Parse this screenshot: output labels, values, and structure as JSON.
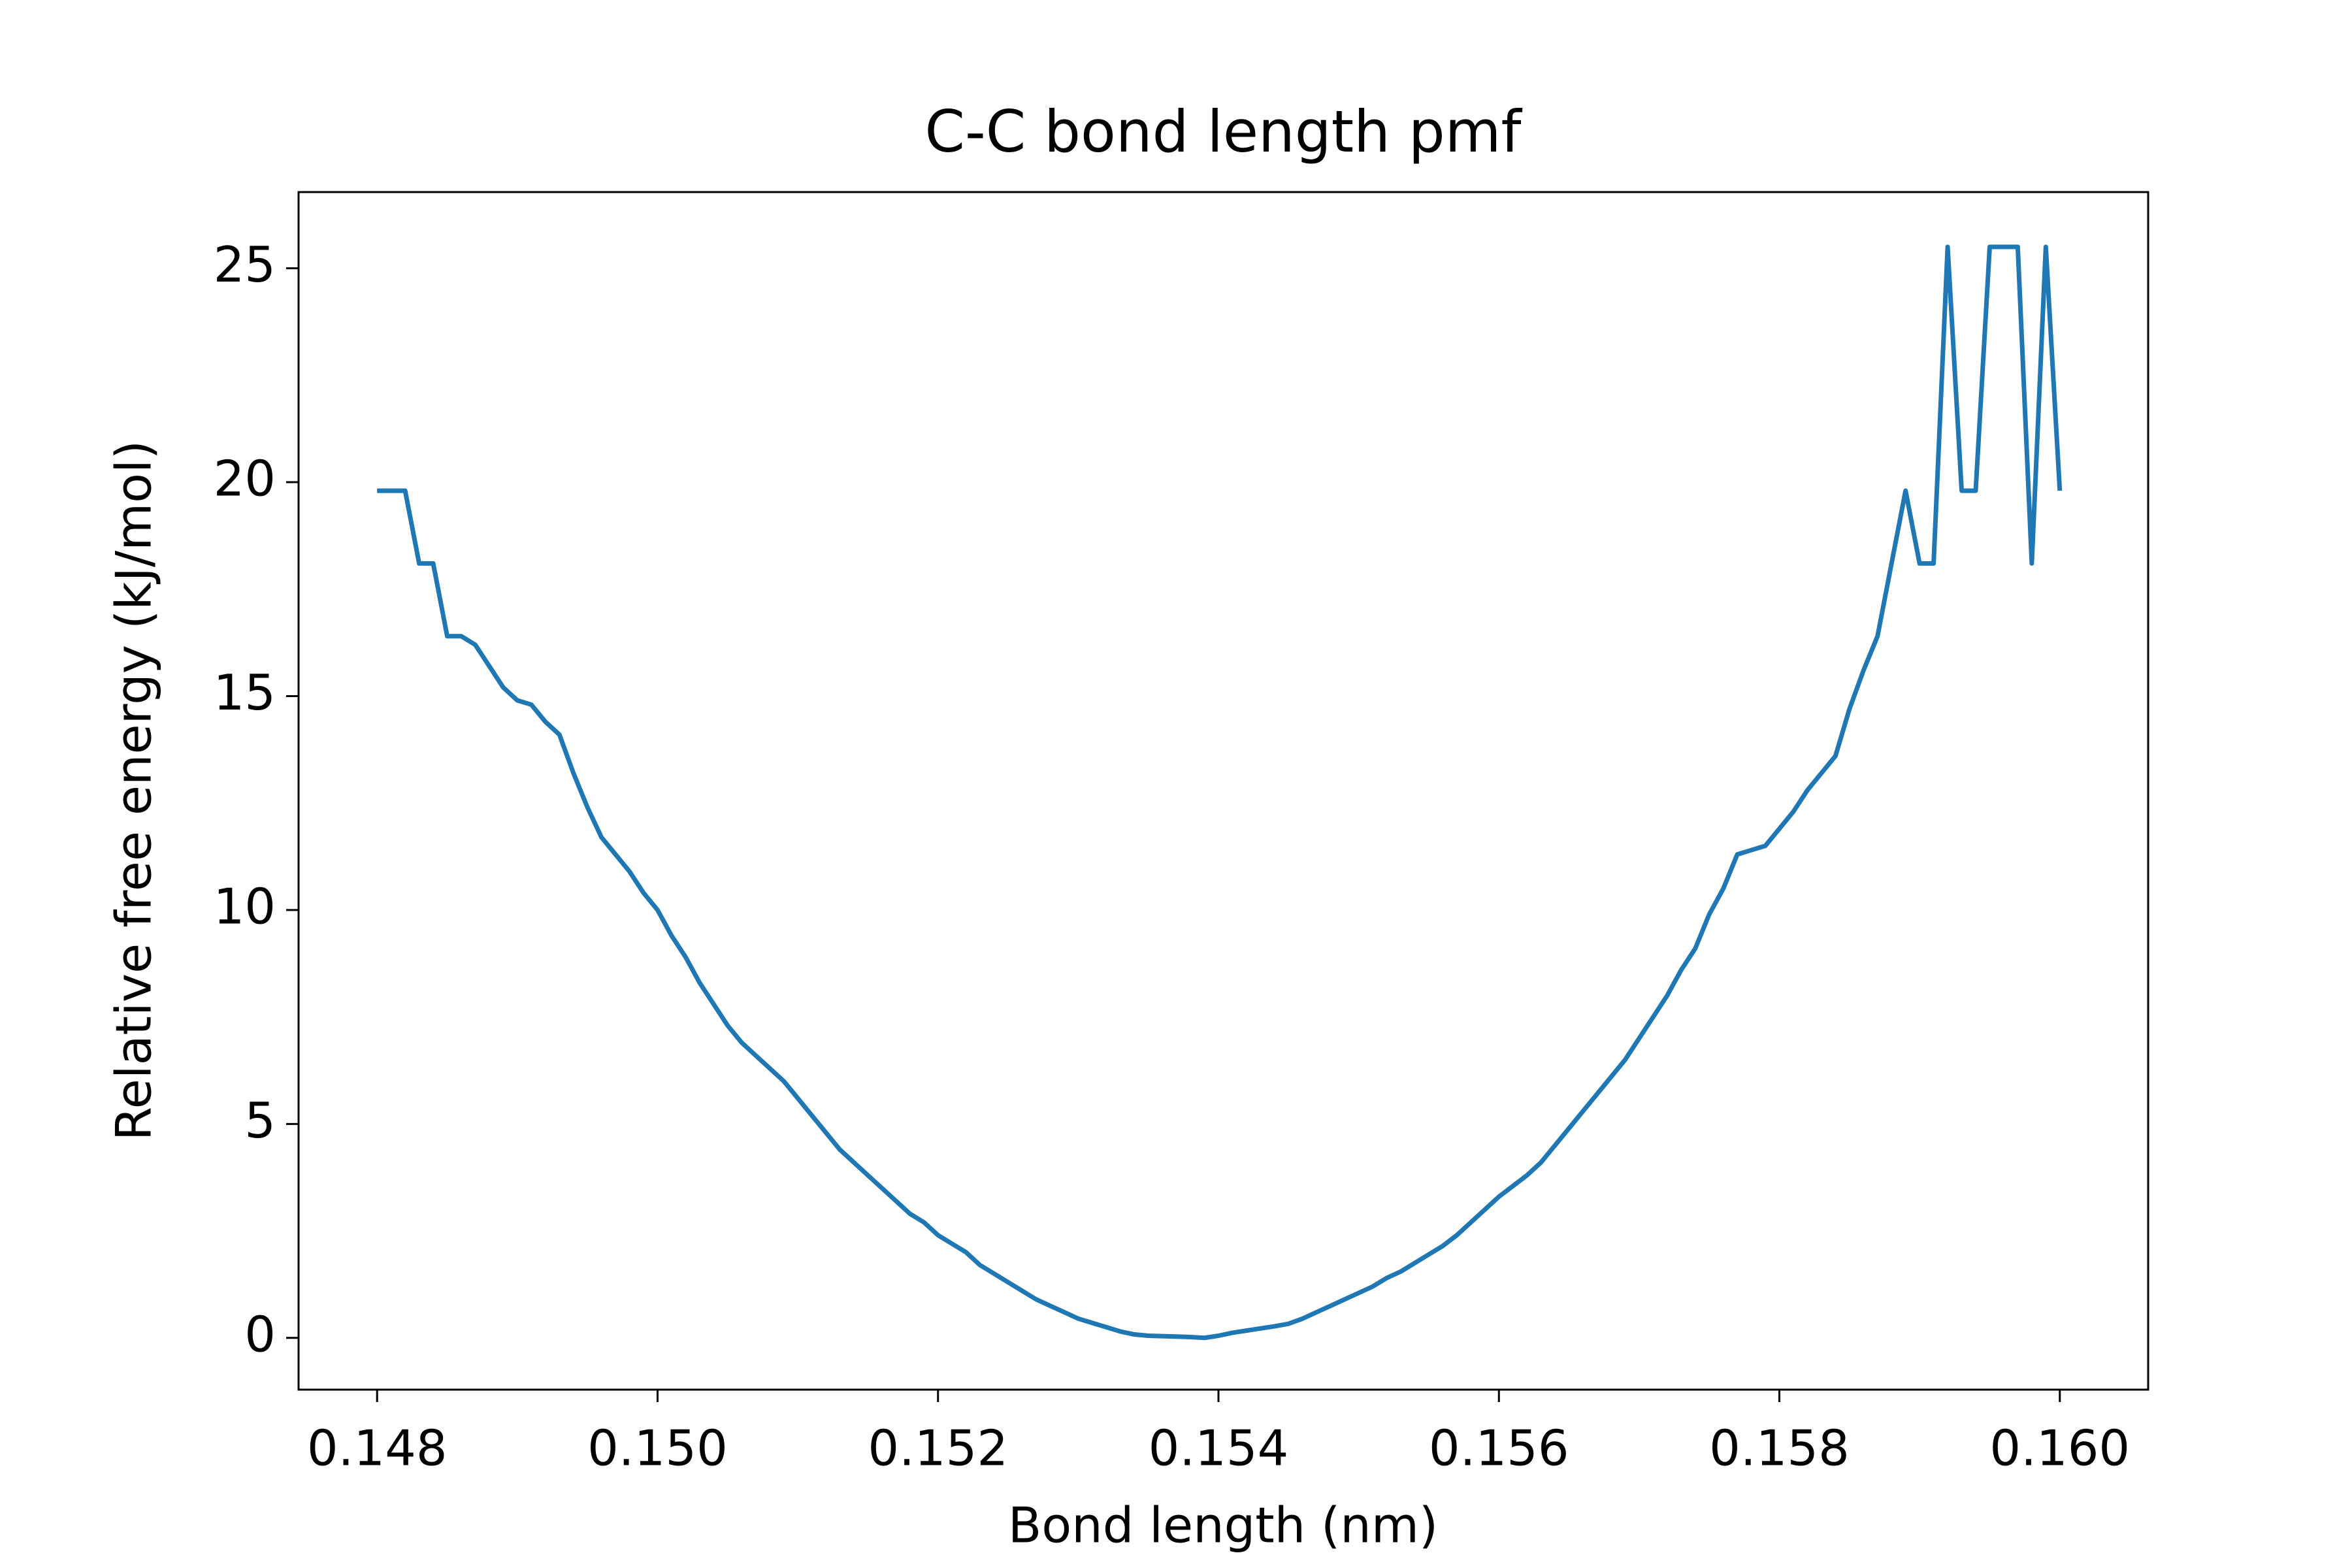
{
  "chart_data": {
    "type": "line",
    "title": "C-C bond length pmf",
    "xlabel": "Bond length (nm)",
    "ylabel": "Relative free energy (kJ/mol)",
    "x": [
      0.148,
      0.1481,
      0.1482,
      0.1483,
      0.1484,
      0.1485,
      0.1486,
      0.1487,
      0.1488,
      0.1489,
      0.149,
      0.1491,
      0.1492,
      0.1493,
      0.1494,
      0.1495,
      0.1496,
      0.1497,
      0.1498,
      0.1499,
      0.15,
      0.1501,
      0.1502,
      0.1503,
      0.1504,
      0.1505,
      0.1506,
      0.1507,
      0.1508,
      0.1509,
      0.151,
      0.1511,
      0.1512,
      0.1513,
      0.1514,
      0.1515,
      0.1516,
      0.1517,
      0.1518,
      0.1519,
      0.152,
      0.1521,
      0.1522,
      0.1523,
      0.1524,
      0.1525,
      0.1526,
      0.1527,
      0.1528,
      0.1529,
      0.153,
      0.1531,
      0.1532,
      0.1533,
      0.1534,
      0.1535,
      0.1536,
      0.1537,
      0.1538,
      0.1539,
      0.154,
      0.1541,
      0.1542,
      0.1543,
      0.1544,
      0.1545,
      0.1546,
      0.1547,
      0.1548,
      0.1549,
      0.155,
      0.1551,
      0.1552,
      0.1553,
      0.1554,
      0.1555,
      0.1556,
      0.1557,
      0.1558,
      0.1559,
      0.156,
      0.1561,
      0.1562,
      0.1563,
      0.1564,
      0.1565,
      0.1566,
      0.1567,
      0.1568,
      0.1569,
      0.157,
      0.1571,
      0.1572,
      0.1573,
      0.1574,
      0.1575,
      0.1576,
      0.1577,
      0.1578,
      0.1579,
      0.158,
      0.1581,
      0.1582,
      0.1583,
      0.1584,
      0.1585,
      0.1586,
      0.1587,
      0.1588,
      0.1589,
      0.159,
      0.1591,
      0.1592,
      0.1593,
      0.1594,
      0.1595,
      0.1596,
      0.1597,
      0.1598,
      0.1599,
      0.16
    ],
    "series": [
      {
        "color": "#1f77b4",
        "values": [
          19.8,
          19.8,
          19.8,
          18.1,
          18.1,
          16.4,
          16.4,
          16.2,
          15.7,
          15.2,
          14.9,
          14.8,
          14.4,
          14.1,
          13.2,
          12.4,
          11.7,
          11.3,
          10.9,
          10.4,
          10.0,
          9.4,
          8.9,
          8.3,
          7.8,
          7.3,
          6.9,
          6.6,
          6.3,
          6.0,
          5.6,
          5.2,
          4.8,
          4.4,
          4.1,
          3.8,
          3.5,
          3.2,
          2.9,
          2.7,
          2.4,
          2.2,
          2.0,
          1.7,
          1.5,
          1.3,
          1.1,
          0.9,
          0.75,
          0.6,
          0.45,
          0.35,
          0.25,
          0.15,
          0.08,
          0.05,
          0.04,
          0.03,
          0.02,
          0.0,
          0.05,
          0.12,
          0.17,
          0.22,
          0.27,
          0.33,
          0.45,
          0.6,
          0.75,
          0.9,
          1.05,
          1.2,
          1.4,
          1.55,
          1.75,
          1.95,
          2.15,
          2.4,
          2.7,
          3.0,
          3.3,
          3.55,
          3.8,
          4.1,
          4.5,
          4.9,
          5.3,
          5.7,
          6.1,
          6.5,
          7.0,
          7.5,
          8.0,
          8.6,
          9.1,
          9.9,
          10.5,
          11.3,
          11.4,
          11.5,
          11.9,
          12.3,
          12.8,
          13.2,
          13.6,
          14.7,
          15.6,
          16.4,
          18.1,
          19.8,
          18.1,
          18.1,
          25.5,
          19.8,
          19.8,
          25.5,
          25.5,
          25.5,
          18.1,
          25.5,
          19.8
        ]
      }
    ],
    "xlim": [
      0.14744,
      0.16063
    ],
    "ylim": [
      -1.21,
      26.78
    ],
    "xticks": [
      0.148,
      {
        "value": 0.15,
        "label": "0.150"
      },
      0.152,
      0.154,
      0.156,
      0.158,
      {
        "value": 0.16,
        "label": "0.160"
      }
    ],
    "yticks": [
      0,
      5,
      10,
      15,
      20,
      25
    ],
    "grid": false
  }
}
